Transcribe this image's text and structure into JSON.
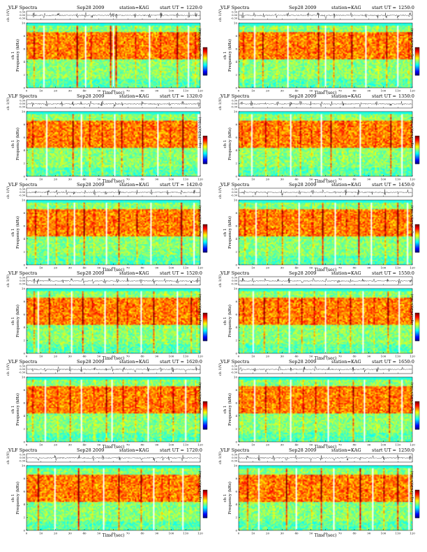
{
  "figure": {
    "title_prefix": "VLF Spectra",
    "date": "Sep28 2009",
    "station_label": "station=KAG",
    "start_label": "start UT =",
    "ts_ylabel": "ch 1(V)",
    "spec_ylabel": "ch 1\nFrequency (kHz)",
    "xlabel": "Time (sec)",
    "cbar_label": "log₁₀(PSD)(V²/Hz)",
    "ts_ticks": [
      "0.30",
      "0.00",
      "-0.30"
    ]
  },
  "chart_data": [
    {
      "type": "heatmap",
      "title": "VLF Spectra    Sep28 2009    station=KAG  start UT =1220:0",
      "start_ut": "1220:0",
      "xlabel": "Time (sec)",
      "ylabel": "Frequency (kHz)",
      "xlim": [
        0,
        120
      ],
      "ylim": [
        0,
        10
      ],
      "x_ticks": [
        "0",
        "10",
        "20",
        "30",
        "40",
        "50",
        "60",
        "70",
        "80",
        "90",
        "100",
        "110",
        "120"
      ],
      "y_ticks": [
        "0",
        "2",
        "4",
        "6",
        "8",
        "10"
      ],
      "colormap": "jet",
      "dominant_band_khz": [
        4.5,
        8.5
      ],
      "noise_floor_above_khz": 9.5,
      "sferic_times_sec": [
        5,
        12,
        22,
        35,
        41,
        45,
        58,
        60,
        62,
        75,
        85,
        93,
        104,
        112,
        117
      ]
    },
    {
      "type": "heatmap",
      "title": "VLF Spectra    Sep28 2009    station=KAG  start UT =1250:0",
      "start_ut": "1250:0",
      "xlabel": "Time (sec)",
      "ylabel": "Frequency (kHz)",
      "xlim": [
        0,
        120
      ],
      "ylim": [
        0,
        10
      ],
      "x_ticks": [
        "0",
        "10",
        "20",
        "30",
        "40",
        "50",
        "60",
        "70",
        "80",
        "90",
        "100",
        "110",
        "120"
      ],
      "y_ticks": [
        "0",
        "2",
        "4",
        "6",
        "8",
        "10"
      ],
      "colormap": "jet",
      "dominant_band_khz": [
        4.5,
        8.5
      ],
      "noise_floor_above_khz": 9.5,
      "sferic_times_sec": [
        3,
        11,
        17,
        26,
        34,
        48,
        55,
        60,
        66,
        78,
        88,
        96,
        102,
        110,
        118
      ]
    },
    {
      "type": "heatmap",
      "title": "VLF Spectra    Sep28 2009    station=KAG  start UT =1320:0",
      "start_ut": "1320:0",
      "xlabel": "Time (sec)",
      "ylabel": "Frequency (kHz)",
      "xlim": [
        0,
        120
      ],
      "ylim": [
        0,
        10
      ],
      "x_ticks": [
        "0",
        "10",
        "20",
        "30",
        "40",
        "50",
        "60",
        "70",
        "80",
        "90",
        "100",
        "110",
        "120"
      ],
      "y_ticks": [
        "0",
        "2",
        "4",
        "6",
        "8",
        "10"
      ],
      "colormap": "jet",
      "dominant_band_khz": [
        4.5,
        8.5
      ],
      "noise_floor_above_khz": 9.5,
      "sferic_times_sec": [
        4,
        14,
        24,
        32,
        38,
        44,
        52,
        61,
        66,
        80,
        91,
        99,
        108,
        119
      ]
    },
    {
      "type": "heatmap",
      "title": "VLF Spectra    Sep28 2009    station=KAG  start UT =1350:0",
      "start_ut": "1350:0",
      "xlabel": "Time (sec)",
      "ylabel": "Frequency (kHz)",
      "xlim": [
        0,
        120
      ],
      "ylim": [
        0,
        10
      ],
      "x_ticks": [
        "0",
        "10",
        "20",
        "30",
        "40",
        "50",
        "60",
        "70",
        "80",
        "90",
        "100",
        "110",
        "120"
      ],
      "y_ticks": [
        "0",
        "2",
        "4",
        "6",
        "8",
        "10"
      ],
      "colormap": "jet",
      "dominant_band_khz": [
        4.5,
        8.5
      ],
      "noise_floor_above_khz": 9.5,
      "sferic_times_sec": [
        2,
        9,
        19,
        27,
        36,
        43,
        50,
        57,
        64,
        72,
        84,
        95,
        105,
        113
      ]
    },
    {
      "type": "heatmap",
      "title": "VLF Spectra    Sep28 2009    station=KAG  start UT =1420:0",
      "start_ut": "1420:0",
      "xlabel": "Time (sec)",
      "ylabel": "Frequency (kHz)",
      "xlim": [
        0,
        120
      ],
      "ylim": [
        0,
        10
      ],
      "x_ticks": [
        "0",
        "10",
        "20",
        "30",
        "40",
        "50",
        "60",
        "70",
        "80",
        "90",
        "100",
        "110",
        "120"
      ],
      "y_ticks": [
        "0",
        "2",
        "4",
        "6",
        "8",
        "10"
      ],
      "colormap": "jet",
      "dominant_band_khz": [
        4.5,
        8.5
      ],
      "noise_floor_above_khz": 9.5,
      "sferic_times_sec": [
        6,
        15,
        21,
        28,
        33,
        40,
        47,
        55,
        64,
        76,
        86,
        97,
        107,
        116
      ]
    },
    {
      "type": "heatmap",
      "title": "VLF Spectra    Sep28 2009    station=KAG  start UT =1450:0",
      "start_ut": "1450:0",
      "xlabel": "Time (sec)",
      "ylabel": "Frequency (kHz)",
      "xlim": [
        0,
        120
      ],
      "ylim": [
        0,
        10
      ],
      "x_ticks": [
        "0",
        "10",
        "20",
        "30",
        "40",
        "50",
        "60",
        "70",
        "80",
        "90",
        "100",
        "110",
        "120"
      ],
      "y_ticks": [
        "0",
        "2",
        "4",
        "6",
        "8",
        "10"
      ],
      "colormap": "jet",
      "dominant_band_khz": [
        4.5,
        8.5
      ],
      "noise_floor_above_khz": 9.5,
      "sferic_times_sec": [
        4,
        12,
        20,
        30,
        42,
        51,
        58,
        67,
        74,
        83,
        92,
        101,
        110,
        117
      ]
    },
    {
      "type": "heatmap",
      "title": "VLF Spectra    Sep28 2009    station=KAG  start UT =1520:0",
      "start_ut": "1520:0",
      "xlabel": "Time (sec)",
      "ylabel": "Frequency (kHz)",
      "xlim": [
        0,
        120
      ],
      "ylim": [
        0,
        10
      ],
      "x_ticks": [
        "0",
        "10",
        "20",
        "30",
        "40",
        "50",
        "60",
        "70",
        "80",
        "90",
        "100",
        "110",
        "120"
      ],
      "y_ticks": [
        "0",
        "2",
        "4",
        "6",
        "8",
        "10"
      ],
      "colormap": "jet",
      "dominant_band_khz": [
        4.5,
        8.5
      ],
      "noise_floor_above_khz": 9.5,
      "sferic_times_sec": [
        5,
        8,
        16,
        25,
        31,
        39,
        46,
        54,
        63,
        70,
        79,
        88,
        96,
        104,
        114,
        118
      ]
    },
    {
      "type": "heatmap",
      "title": "VLF Spectra    Sep28 2009    station=KAG  start UT =1550:0",
      "start_ut": "1550:0",
      "xlabel": "Time (sec)",
      "ylabel": "Frequency (kHz)",
      "xlim": [
        0,
        120
      ],
      "ylim": [
        0,
        10
      ],
      "x_ticks": [
        "0",
        "10",
        "20",
        "30",
        "40",
        "50",
        "60",
        "70",
        "80",
        "90",
        "100",
        "110",
        "120"
      ],
      "y_ticks": [
        "0",
        "2",
        "4",
        "6",
        "8",
        "10"
      ],
      "colormap": "jet",
      "dominant_band_khz": [
        4.5,
        8.5
      ],
      "noise_floor_above_khz": 9.5,
      "sferic_times_sec": [
        3,
        10,
        18,
        27,
        35,
        44,
        52,
        60,
        69,
        77,
        86,
        94,
        103,
        111,
        119
      ]
    },
    {
      "type": "heatmap",
      "title": "VLF Spectra    Sep28 2009    station=KAG  start UT =1620:0",
      "start_ut": "1620:0",
      "xlabel": "Time (sec)",
      "ylabel": "Frequency (kHz)",
      "xlim": [
        0,
        120
      ],
      "ylim": [
        0,
        10
      ],
      "x_ticks": [
        "0",
        "10",
        "20",
        "30",
        "40",
        "50",
        "60",
        "70",
        "80",
        "90",
        "100",
        "110",
        "120"
      ],
      "y_ticks": [
        "0",
        "2",
        "4",
        "6",
        "8",
        "10"
      ],
      "colormap": "jet",
      "dominant_band_khz": [
        4.5,
        8.5
      ],
      "noise_floor_above_khz": 9.5,
      "sferic_times_sec": [
        4,
        13,
        22,
        30,
        38,
        47,
        55,
        59,
        67,
        75,
        84,
        93,
        101,
        110,
        117
      ]
    },
    {
      "type": "heatmap",
      "title": "VLF Spectra    Sep28 2009    station=KAG  start UT =1650:0",
      "start_ut": "1650:0",
      "xlabel": "Time (sec)",
      "ylabel": "Frequency (kHz)",
      "xlim": [
        0,
        120
      ],
      "ylim": [
        0,
        10
      ],
      "x_ticks": [
        "0",
        "10",
        "20",
        "30",
        "40",
        "50",
        "60",
        "70",
        "80",
        "90",
        "100",
        "110",
        "120"
      ],
      "y_ticks": [
        "0",
        "2",
        "4",
        "6",
        "8",
        "10"
      ],
      "colormap": "jet",
      "dominant_band_khz": [
        4.5,
        8.5
      ],
      "noise_floor_above_khz": 9.5,
      "sferic_times_sec": [
        2,
        11,
        19,
        28,
        36,
        45,
        53,
        62,
        70,
        79,
        87,
        96,
        104,
        113
      ]
    },
    {
      "type": "heatmap",
      "title": "VLF Spectra    Sep28 2009    station=KAG  start UT =1720:0",
      "start_ut": "1720:0",
      "xlabel": "Time (sec)",
      "ylabel": "Frequency (kHz)",
      "xlim": [
        0,
        120
      ],
      "ylim": [
        0,
        10
      ],
      "x_ticks": [
        "0",
        "10",
        "20",
        "30",
        "40",
        "50",
        "60",
        "70",
        "80",
        "90",
        "100",
        "110",
        "120"
      ],
      "y_ticks": [
        "0",
        "2",
        "4",
        "6",
        "8",
        "10"
      ],
      "colormap": "jet",
      "dominant_band_khz": [
        4.5,
        8.5
      ],
      "noise_floor_above_khz": 9.5,
      "sferic_times_sec": [
        8,
        20,
        36,
        46,
        53,
        64,
        79,
        88,
        94,
        98,
        108
      ]
    },
    {
      "type": "heatmap",
      "title": "VLF Spectra    Sep28 2009    station=KAG  start UT =1250:0",
      "start_ut": "1250:0",
      "xlabel": "Time (sec)",
      "ylabel": "Frequency (kHz)",
      "xlim": [
        0,
        120
      ],
      "ylim": [
        0,
        10
      ],
      "x_ticks": [
        "0",
        "10",
        "20",
        "30",
        "40",
        "50",
        "60",
        "70",
        "80",
        "90",
        "100",
        "110",
        "120"
      ],
      "y_ticks": [
        "0",
        "2",
        "4",
        "6",
        "8",
        "10"
      ],
      "colormap": "jet",
      "dominant_band_khz": [
        4.5,
        8.5
      ],
      "noise_floor_above_khz": 9.5,
      "sferic_times_sec": [
        6,
        14,
        24,
        33,
        40,
        50,
        57,
        66,
        75,
        84,
        93,
        100,
        110,
        118
      ]
    }
  ]
}
